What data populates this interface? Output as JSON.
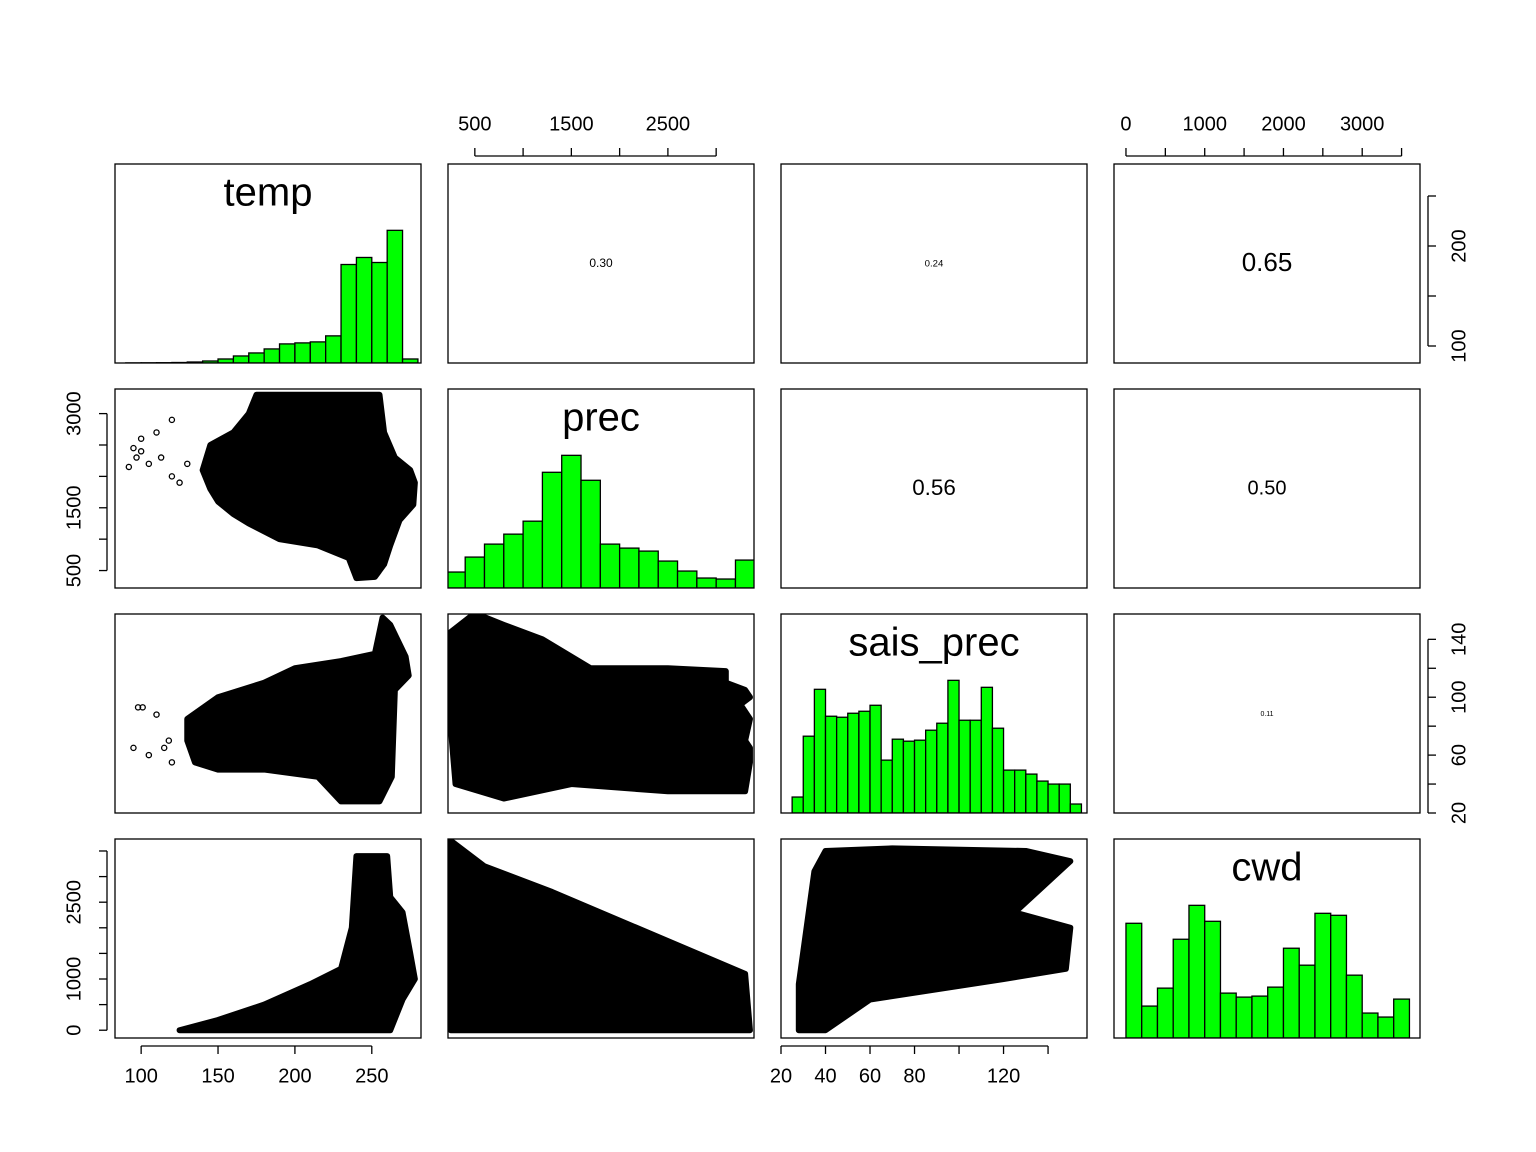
{
  "chart_data": {
    "type": "pairs",
    "hist_color": "#00ff00",
    "point_color": "#000000",
    "variables": [
      {
        "name": "temp",
        "lim": [
          83,
          282
        ],
        "bins": [
          90,
          100,
          110,
          120,
          130,
          140,
          150,
          160,
          170,
          180,
          190,
          200,
          210,
          220,
          230,
          240,
          250,
          260,
          270,
          280
        ],
        "counts": [
          0.1,
          0.2,
          0.3,
          0.5,
          1,
          2,
          4,
          7,
          10,
          14,
          19,
          20,
          21,
          27,
          98,
          105,
          100,
          132,
          4
        ]
      },
      {
        "name": "prec",
        "lim": [
          222,
          3392
        ],
        "bins": [
          200,
          400,
          600,
          800,
          1000,
          1200,
          1400,
          1600,
          1800,
          2000,
          2200,
          2400,
          2600,
          2800,
          3000,
          3200,
          3400
        ],
        "counts": [
          16,
          31,
          44,
          54,
          67,
          116,
          133,
          108,
          44,
          40,
          37,
          27,
          17,
          10,
          9,
          28
        ]
      },
      {
        "name": "sais_prec",
        "lim": [
          20,
          157.5
        ],
        "bins": [
          25,
          30,
          35,
          40,
          45,
          50,
          55,
          60,
          65,
          70,
          75,
          80,
          85,
          90,
          95,
          100,
          105,
          110,
          115,
          120,
          125,
          130,
          135,
          140,
          145,
          150,
          155
        ],
        "counts": [
          16,
          77,
          124,
          97,
          96,
          100,
          102,
          108,
          53,
          74,
          72,
          73,
          83,
          90,
          133,
          93,
          93,
          126,
          85,
          43,
          43,
          39,
          32,
          29,
          29,
          9
        ]
      },
      {
        "name": "cwd",
        "lim": [
          -152,
          3734
        ],
        "bins": [
          0,
          200,
          400,
          600,
          800,
          1000,
          1200,
          1400,
          1600,
          1800,
          2000,
          2200,
          2400,
          2600,
          2800,
          3000,
          3200,
          3400,
          3600
        ],
        "counts": [
          115,
          32,
          50,
          99,
          133,
          117,
          45,
          41,
          42,
          51,
          90,
          73,
          125,
          123,
          63,
          25,
          21,
          39
        ]
      }
    ],
    "axes": [
      {
        "var": "temp",
        "side": "bottom",
        "ticks": [
          100,
          150,
          200,
          250
        ],
        "minor_ticks": []
      },
      {
        "var": "temp",
        "side": "right",
        "ticks": [
          100,
          200
        ],
        "minor_ticks": [
          150,
          250
        ]
      },
      {
        "var": "prec",
        "side": "top",
        "ticks": [
          500,
          1500,
          2500
        ],
        "minor_ticks": [
          1000,
          2000,
          3000
        ]
      },
      {
        "var": "prec",
        "side": "left",
        "ticks": [
          500,
          1500,
          3000
        ],
        "minor_ticks": [
          1000,
          2000,
          2500
        ]
      },
      {
        "var": "sais_prec",
        "side": "bottom",
        "ticks": [
          20,
          40,
          60,
          80,
          120
        ],
        "minor_ticks": [
          100,
          140
        ]
      },
      {
        "var": "sais_prec",
        "side": "right",
        "ticks": [
          20,
          60,
          100,
          140
        ],
        "minor_ticks": [
          40,
          80,
          120
        ]
      },
      {
        "var": "cwd",
        "side": "top",
        "ticks": [
          0,
          1000,
          2000,
          3000
        ],
        "minor_ticks": [
          500,
          1500,
          2500,
          3500
        ]
      },
      {
        "var": "cwd",
        "side": "left",
        "ticks": [
          0,
          1000,
          2500
        ],
        "minor_ticks": [
          500,
          1500,
          2000,
          3000,
          3500
        ]
      }
    ],
    "correlations": [
      {
        "vars": [
          "temp",
          "prec"
        ],
        "value": 0.3,
        "value_label": "0.30"
      },
      {
        "vars": [
          "temp",
          "sais_prec"
        ],
        "value": 0.24,
        "value_label": "0.24"
      },
      {
        "vars": [
          "temp",
          "cwd"
        ],
        "value": 0.65,
        "value_label": "0.65"
      },
      {
        "vars": [
          "prec",
          "sais_prec"
        ],
        "value": 0.56,
        "value_label": "0.56"
      },
      {
        "vars": [
          "prec",
          "cwd"
        ],
        "value": 0.5,
        "value_label": "0.50"
      },
      {
        "vars": [
          "sais_prec",
          "cwd"
        ],
        "value": 0.11,
        "value_label": "0.11"
      }
    ],
    "scatter": [
      {
        "x_var": "temp",
        "y_var": "prec",
        "x": [
          180,
          255,
          258,
          265,
          275,
          278,
          277,
          268,
          262,
          258,
          252,
          240,
          235,
          215,
          190,
          170,
          160,
          150,
          145,
          140,
          145,
          160,
          170,
          175
        ],
        "y": [
          3300,
          3300,
          2700,
          2300,
          2100,
          1900,
          1550,
          1300,
          900,
          600,
          400,
          380,
          700,
          900,
          1000,
          1250,
          1400,
          1600,
          1800,
          2100,
          2500,
          2700,
          3000,
          3300
        ],
        "points_x": [
          92,
          95,
          97,
          100,
          100,
          105,
          110,
          113,
          120,
          120,
          125,
          130
        ],
        "points_y": [
          2150,
          2450,
          2300,
          2600,
          2400,
          2200,
          2700,
          2300,
          2000,
          2900,
          1900,
          2200
        ]
      },
      {
        "x_var": "temp",
        "y_var": "sais_prec",
        "x": [
          130,
          150,
          180,
          200,
          230,
          252,
          257,
          262,
          272,
          274,
          265,
          263,
          255,
          230,
          215,
          180,
          150,
          135,
          130
        ],
        "y": [
          85,
          100,
          110,
          120,
          125,
          130,
          155,
          150,
          128,
          115,
          105,
          45,
          28,
          28,
          45,
          50,
          50,
          55,
          70
        ],
        "points_x": [
          95,
          98,
          101,
          105,
          110,
          115,
          118,
          120
        ],
        "points_y": [
          65,
          93,
          93,
          60,
          88,
          65,
          70,
          55
        ]
      },
      {
        "x_var": "temp",
        "y_var": "cwd",
        "x": [
          125,
          150,
          180,
          210,
          230,
          237,
          240,
          260,
          262,
          270,
          275,
          278,
          270,
          262
        ],
        "y": [
          0,
          200,
          500,
          900,
          1200,
          2000,
          3400,
          3400,
          2600,
          2300,
          1500,
          1000,
          600,
          0
        ],
        "points_x": [],
        "points_y": []
      },
      {
        "x_var": "prec",
        "y_var": "sais_prec",
        "x": [
          250,
          500,
          800,
          1200,
          1700,
          2500,
          3100,
          3100,
          3300,
          3350,
          3250,
          3350,
          3300,
          3350,
          3350,
          3300,
          2500,
          1500,
          800,
          300,
          250
        ],
        "y": [
          145,
          158,
          150,
          140,
          120,
          120,
          118,
          110,
          105,
          100,
          95,
          85,
          70,
          65,
          55,
          35,
          35,
          40,
          30,
          40,
          80
        ],
        "points_x": [],
        "points_y": []
      },
      {
        "x_var": "prec",
        "y_var": "cwd",
        "x": [
          250,
          600,
          1300,
          3300,
          3350,
          250,
          230
        ],
        "y": [
          3700,
          3200,
          2700,
          1100,
          0,
          0,
          2000
        ],
        "points_x": [],
        "points_y": []
      },
      {
        "x_var": "sais_prec",
        "y_var": "cwd",
        "x": [
          28,
          28,
          35,
          40,
          70,
          130,
          150,
          145,
          125,
          150,
          148,
          120,
          60,
          40
        ],
        "y": [
          0,
          900,
          3100,
          3500,
          3550,
          3500,
          3300,
          3100,
          2300,
          2000,
          1200,
          1000,
          600,
          0
        ],
        "points_x": [],
        "points_y": []
      }
    ]
  }
}
